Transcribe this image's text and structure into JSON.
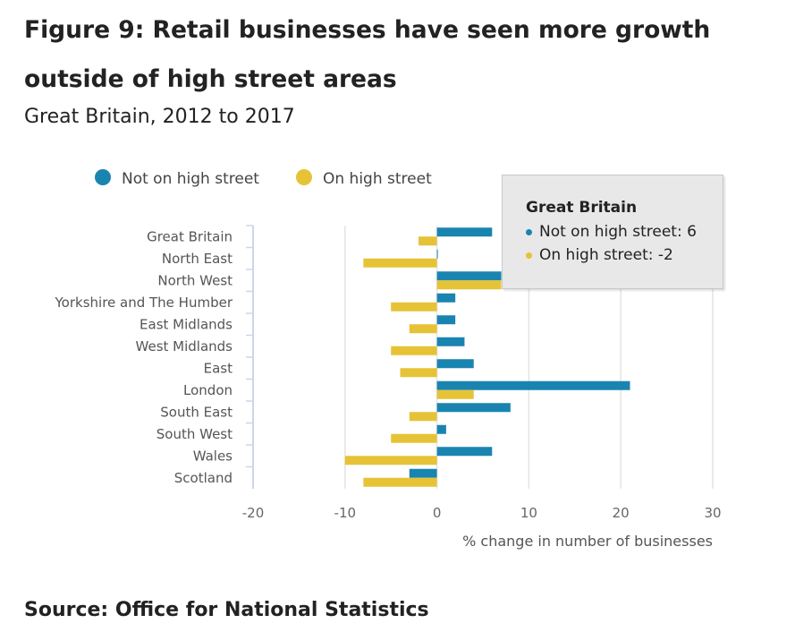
{
  "title": "Figure 9: Retail businesses have seen more growth outside of high street areas",
  "subtitle": "Great Britain, 2012 to 2017",
  "source": "Source: Office for National Statistics",
  "colors": {
    "not_on": "#1a84b0",
    "on": "#e6c336"
  },
  "tooltip": {
    "title": "Great Britain",
    "rows": [
      "Not on high street: 6",
      "On high street: -2"
    ]
  },
  "chart_data": {
    "type": "bar",
    "orientation": "horizontal",
    "categories": [
      "Great Britain",
      "North East",
      "North West",
      "Yorkshire and The Humber",
      "East Midlands",
      "West Midlands",
      "East",
      "London",
      "South East",
      "South West",
      "Wales",
      "Scotland"
    ],
    "series": [
      {
        "name": "Not on high street",
        "values": [
          6,
          0,
          7,
          2,
          2,
          3,
          4,
          21,
          8,
          1,
          6,
          -3
        ]
      },
      {
        "name": "On high street",
        "values": [
          -2,
          -8,
          7,
          -5,
          -3,
          -5,
          -4,
          4,
          -3,
          -5,
          -10,
          -8
        ]
      }
    ],
    "xlabel": "% change in number of businesses",
    "xlim": [
      -20,
      30
    ],
    "xticks": [
      -20,
      -10,
      0,
      10,
      20,
      30
    ],
    "grid": true,
    "legend": "top-left"
  }
}
